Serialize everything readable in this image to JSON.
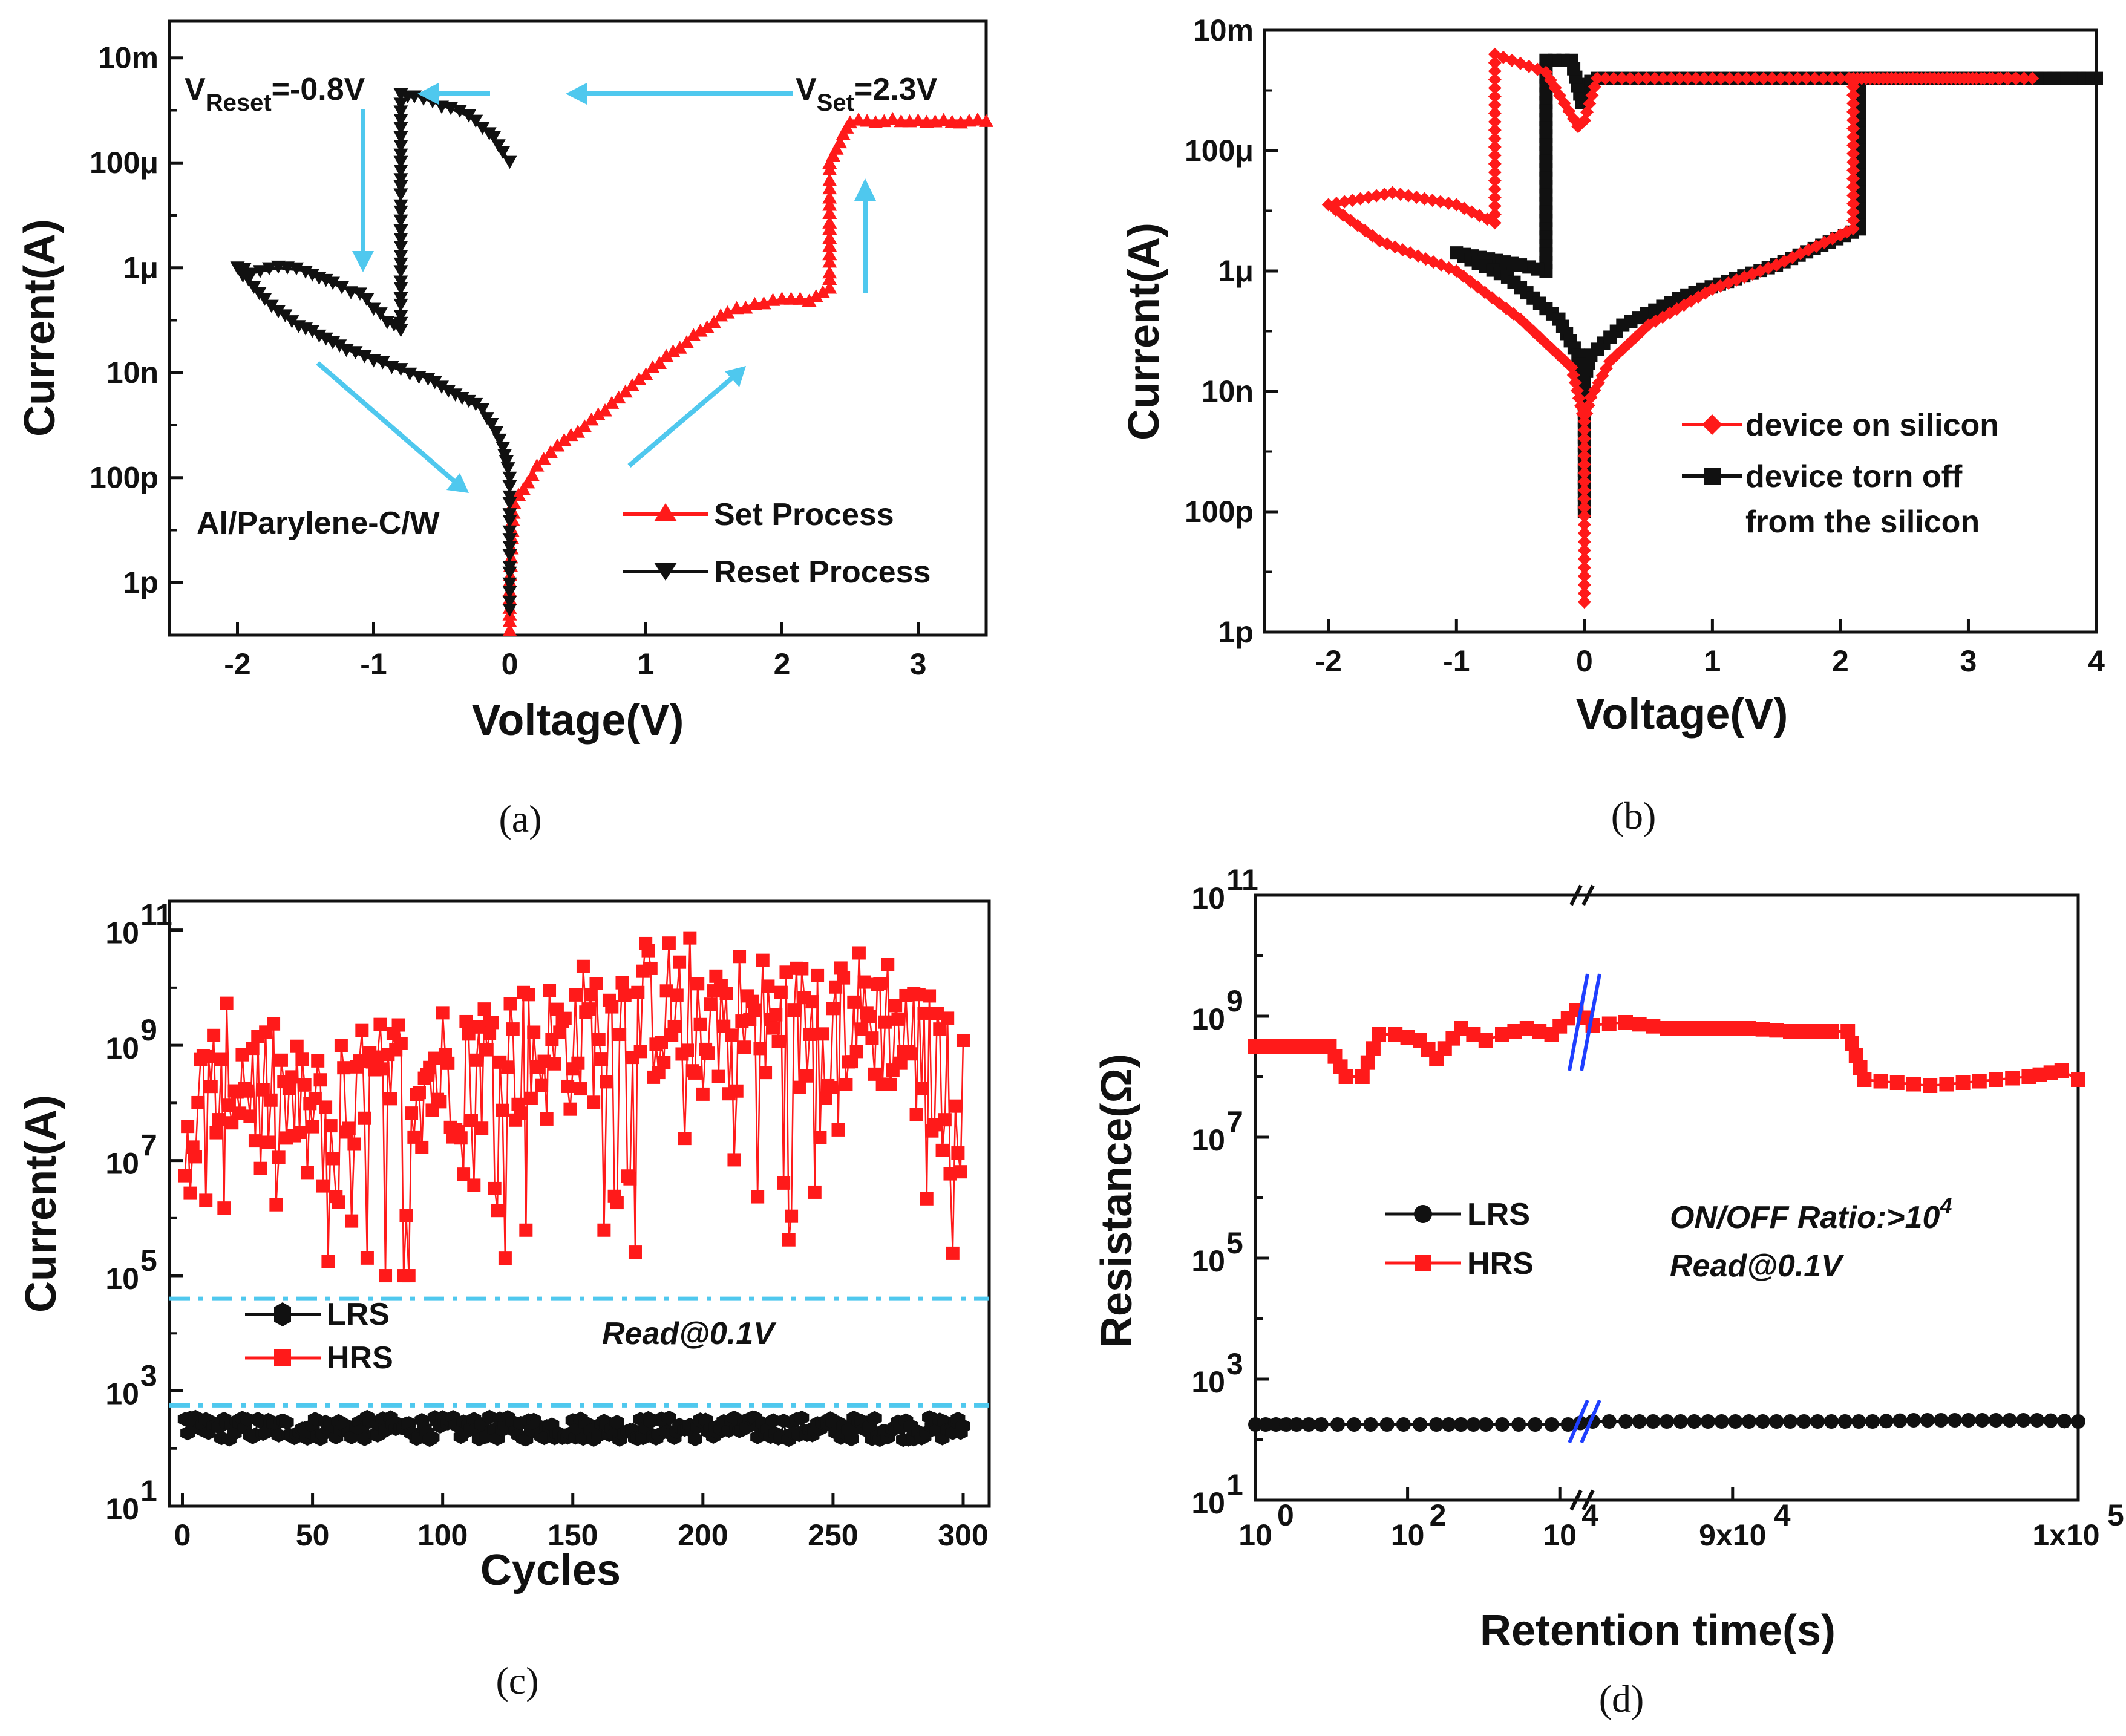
{
  "colors": {
    "red": "#ff1a1a",
    "black": "#111111",
    "cyan": "#4fc8ee",
    "blue": "#1f3fff"
  },
  "chart_data": [
    {
      "id": "a",
      "type": "line",
      "caption": "(a)",
      "xlabel": "Voltage(V)",
      "ylabel": "Current(A)",
      "xlim": [
        -2.5,
        3.5
      ],
      "ylim_log10": [
        -13,
        -1.3
      ],
      "xticks": [
        {
          "v": -2,
          "t": "-2"
        },
        {
          "v": -1,
          "t": "-1"
        },
        {
          "v": 0,
          "t": "0"
        },
        {
          "v": 1,
          "t": "1"
        },
        {
          "v": 2,
          "t": "2"
        },
        {
          "v": 3,
          "t": "3"
        }
      ],
      "yticks": [
        {
          "v": -2,
          "t": "10m"
        },
        {
          "v": -4,
          "t": "100μ"
        },
        {
          "v": -6,
          "t": "1μ"
        },
        {
          "v": -8,
          "t": "10n"
        },
        {
          "v": -10,
          "t": "100p"
        },
        {
          "v": -12,
          "t": "1p"
        }
      ],
      "series": [
        {
          "name": "Set Process",
          "color": "#ff1a1a",
          "marker": "triangle-up",
          "x": [
            0.0,
            0.0,
            0.03,
            0.1,
            0.2,
            0.3,
            0.5,
            0.8,
            1.0,
            1.2,
            1.4,
            1.6,
            1.8,
            2.0,
            2.2,
            2.3,
            2.35,
            2.35,
            2.5,
            3.0,
            3.5
          ],
          "logy": [
            -12.9,
            -12.0,
            -10.5,
            -10.2,
            -9.8,
            -9.5,
            -9.1,
            -8.5,
            -8.0,
            -7.6,
            -7.2,
            -6.85,
            -6.7,
            -6.6,
            -6.6,
            -6.5,
            -6.4,
            -4.0,
            -3.2,
            -3.2,
            -3.2
          ]
        },
        {
          "name": "Reset Process",
          "color": "#111111",
          "marker": "triangle-down",
          "x": [
            0.0,
            0.0,
            0.0,
            -0.05,
            -0.1,
            -0.2,
            -0.4,
            -0.6,
            -0.8,
            -1.0,
            -1.2,
            -1.4,
            -1.6,
            -1.8,
            -2.0,
            -1.9,
            -1.7,
            -1.5,
            -1.3,
            -1.1,
            -0.9,
            -0.8,
            -0.8,
            -0.7,
            -0.5,
            -0.3,
            -0.15,
            -0.05,
            0.0
          ],
          "logy": [
            -12.5,
            -11.0,
            -10.0,
            -9.4,
            -9.1,
            -8.7,
            -8.4,
            -8.1,
            -7.95,
            -7.75,
            -7.55,
            -7.3,
            -7.0,
            -6.6,
            -6.0,
            -6.1,
            -6.0,
            -6.05,
            -6.3,
            -6.5,
            -7.0,
            -7.2,
            -2.7,
            -2.7,
            -2.9,
            -3.1,
            -3.4,
            -3.8,
            -4.0
          ]
        }
      ],
      "annotations": [
        {
          "main": "V",
          "sub": "Reset",
          "rest": "=-0.8V"
        },
        {
          "main": "V",
          "sub": "Set",
          "rest": "=2.3V"
        },
        {
          "text": "Al/Parylene-C/W"
        }
      ]
    },
    {
      "id": "b",
      "type": "line",
      "caption": "(b)",
      "xlabel": "Voltage(V)",
      "ylabel": "Current(A)",
      "xlim": [
        -2.5,
        4
      ],
      "ylim_log10": [
        -12,
        -2
      ],
      "xticks": [
        {
          "v": -2,
          "t": "-2"
        },
        {
          "v": -1,
          "t": "-1"
        },
        {
          "v": 0,
          "t": "0"
        },
        {
          "v": 1,
          "t": "1"
        },
        {
          "v": 2,
          "t": "2"
        },
        {
          "v": 3,
          "t": "3"
        },
        {
          "v": 4,
          "t": "4"
        }
      ],
      "yticks": [
        {
          "v": -2,
          "t": "10m"
        },
        {
          "v": -4,
          "t": "100μ"
        },
        {
          "v": -6,
          "t": "1μ"
        },
        {
          "v": -8,
          "t": "10n"
        },
        {
          "v": -10,
          "t": "100p"
        },
        {
          "v": -12,
          "t": "1p"
        }
      ],
      "series": [
        {
          "name": "device on silicon",
          "color": "#ff1a1a",
          "marker": "diamond",
          "x": [
            0.0,
            0.0,
            0.05,
            0.2,
            0.5,
            1.0,
            1.5,
            2.0,
            2.1,
            2.1,
            2.5,
            3.5,
            3.0,
            1.0,
            0.1,
            0.0,
            0.0,
            -0.05,
            -0.3,
            -0.7,
            -0.7,
            -1.0,
            -1.5,
            -2.0,
            -1.6,
            -1.0,
            -0.5,
            -0.1,
            0.0
          ],
          "logy": [
            -11.5,
            -8.5,
            -8.1,
            -7.5,
            -6.9,
            -6.3,
            -5.9,
            -5.4,
            -5.3,
            -2.8,
            -2.8,
            -2.8,
            -2.8,
            -2.8,
            -2.8,
            -3.5,
            -3.5,
            -3.6,
            -2.7,
            -2.4,
            -5.2,
            -4.9,
            -4.7,
            -4.9,
            -5.5,
            -6.0,
            -6.8,
            -7.6,
            -8.5
          ]
        },
        {
          "name": "device torn off from the silicon",
          "color": "#111111",
          "marker": "square",
          "x": [
            0.0,
            0.0,
            0.05,
            0.3,
            0.8,
            1.5,
            2.15,
            2.15,
            3.0,
            4.0,
            1.0,
            0.1,
            0.0,
            -0.02,
            -0.1,
            -0.3,
            -0.3,
            -0.5,
            -1.0,
            -0.6,
            -0.2,
            -0.05,
            0.0
          ],
          "logy": [
            -10.0,
            -7.8,
            -7.4,
            -6.9,
            -6.4,
            -5.9,
            -5.3,
            -2.8,
            -2.8,
            -2.8,
            -2.8,
            -2.8,
            -2.9,
            -3.2,
            -2.5,
            -2.5,
            -6.0,
            -5.9,
            -5.7,
            -6.1,
            -6.8,
            -7.4,
            -8.0
          ]
        }
      ]
    },
    {
      "id": "c",
      "type": "scatter",
      "caption": "(c)",
      "xlabel": "Cycles",
      "ylabel": "Current(A)",
      "xlim": [
        -5,
        310
      ],
      "ylim_log10": [
        1,
        11.5
      ],
      "xticks": [
        {
          "v": 0,
          "t": "0"
        },
        {
          "v": 50,
          "t": "50"
        },
        {
          "v": 100,
          "t": "100"
        },
        {
          "v": 150,
          "t": "150"
        },
        {
          "v": 200,
          "t": "200"
        },
        {
          "v": 250,
          "t": "250"
        },
        {
          "v": 300,
          "t": "300"
        }
      ],
      "yticks": [
        {
          "v": 1,
          "b": "10",
          "e": "1"
        },
        {
          "v": 3,
          "b": "10",
          "e": "3"
        },
        {
          "v": 5,
          "b": "10",
          "e": "5"
        },
        {
          "v": 7,
          "b": "10",
          "e": "7"
        },
        {
          "v": 9,
          "b": "10",
          "e": "9"
        },
        {
          "v": 11,
          "b": "10",
          "e": "11"
        }
      ],
      "hlines_log10": [
        4.6,
        2.75
      ],
      "series": [
        {
          "name": "LRS",
          "color": "#111111",
          "marker": "hexagon",
          "n": 300,
          "mean_log10": 2.35,
          "spread": 0.2
        },
        {
          "name": "HRS",
          "color": "#ff1a1a",
          "marker": "square",
          "n": 300,
          "envelope_log10": [
            [
              0,
              7.5
            ],
            [
              20,
              8.6
            ],
            [
              50,
              7.6
            ],
            [
              80,
              8.3
            ],
            [
              110,
              8.7
            ],
            [
              140,
              8.9
            ],
            [
              160,
              9.3
            ],
            [
              180,
              9.6
            ],
            [
              200,
              9.7
            ],
            [
              230,
              9.2
            ],
            [
              250,
              9.4
            ],
            [
              270,
              9.5
            ],
            [
              300,
              8.0
            ]
          ],
          "spread": 1.3
        }
      ],
      "annotations": [
        {
          "text": "Read@0.1V"
        }
      ]
    },
    {
      "id": "d",
      "type": "line",
      "caption": "(d)",
      "xlabel": "Retention time(s)",
      "ylabel": "Resistance(Ω)",
      "ylim_log10": [
        1,
        11
      ],
      "xticks": [
        {
          "pos": 0.0,
          "b": "10",
          "e": "0"
        },
        {
          "pos": 0.185,
          "b": "10",
          "e": "2"
        },
        {
          "pos": 0.37,
          "b": "10",
          "e": "4"
        },
        {
          "pos": 0.58,
          "b": "9x10",
          "e": "4"
        },
        {
          "pos": 1.0,
          "b": "1x10",
          "e": "5"
        }
      ],
      "yticks": [
        {
          "v": 1,
          "b": "10",
          "e": "1"
        },
        {
          "v": 3,
          "b": "10",
          "e": "3"
        },
        {
          "v": 5,
          "b": "10",
          "e": "5"
        },
        {
          "v": 7,
          "b": "10",
          "e": "7"
        },
        {
          "v": 9,
          "b": "10",
          "e": "9"
        },
        {
          "v": 11,
          "b": "10",
          "e": "11"
        }
      ],
      "axis_break_pos": 0.4,
      "series": [
        {
          "name": "LRS",
          "color": "#111111",
          "marker": "circle",
          "pos": [
            0.0,
            0.025,
            0.05,
            0.08,
            0.1,
            0.12,
            0.14,
            0.16,
            0.18,
            0.2,
            0.22,
            0.25,
            0.28,
            0.3,
            0.32,
            0.34,
            0.36,
            0.38,
            0.41,
            0.45,
            0.5,
            0.55,
            0.6,
            0.65,
            0.7,
            0.75,
            0.8,
            0.85,
            0.9,
            0.95,
            1.0
          ],
          "logy": [
            2.25,
            2.25,
            2.25,
            2.25,
            2.25,
            2.25,
            2.25,
            2.25,
            2.25,
            2.25,
            2.25,
            2.25,
            2.25,
            2.25,
            2.25,
            2.25,
            2.25,
            2.25,
            2.3,
            2.3,
            2.3,
            2.3,
            2.3,
            2.3,
            2.3,
            2.3,
            2.32,
            2.32,
            2.32,
            2.32,
            2.3
          ]
        },
        {
          "name": "HRS",
          "color": "#ff1a1a",
          "marker": "square",
          "pos": [
            0.0,
            0.03,
            0.06,
            0.09,
            0.11,
            0.13,
            0.15,
            0.17,
            0.2,
            0.22,
            0.25,
            0.28,
            0.3,
            0.33,
            0.36,
            0.39,
            0.41,
            0.45,
            0.5,
            0.55,
            0.6,
            0.65,
            0.7,
            0.72,
            0.74,
            0.78,
            0.82,
            0.86,
            0.9,
            0.94,
            0.98,
            1.0
          ],
          "logy": [
            8.5,
            8.5,
            8.5,
            8.5,
            8.0,
            8.0,
            8.7,
            8.7,
            8.6,
            8.3,
            8.8,
            8.6,
            8.7,
            8.8,
            8.7,
            9.1,
            8.85,
            8.9,
            8.8,
            8.8,
            8.8,
            8.75,
            8.75,
            8.75,
            7.95,
            7.9,
            7.85,
            7.9,
            7.95,
            8.0,
            8.1,
            7.95
          ]
        }
      ],
      "annotations": [
        {
          "text": "ON/OFF Ratio:>10",
          "sup": "4"
        },
        {
          "text": "Read@0.1V"
        }
      ]
    }
  ]
}
